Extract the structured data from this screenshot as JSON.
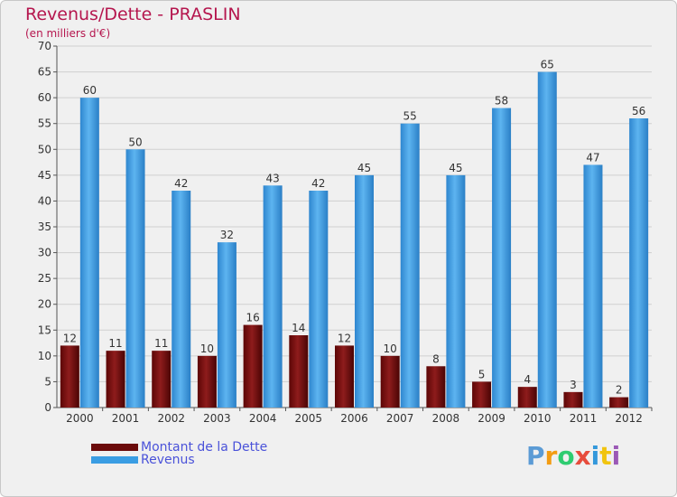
{
  "title": "Revenus/Dette - PRASLIN",
  "subtitle": "(en milliers d'€)",
  "logo": {
    "text": "Proxiti",
    "letters": [
      {
        "ch": "P",
        "color": "#5b9bd5"
      },
      {
        "ch": "r",
        "color": "#f39c12"
      },
      {
        "ch": "o",
        "color": "#2ecc71"
      },
      {
        "ch": "x",
        "color": "#e74c3c"
      },
      {
        "ch": "i",
        "color": "#3498db"
      },
      {
        "ch": "t",
        "color": "#f1c40f"
      },
      {
        "ch": "i",
        "color": "#9b59b6"
      }
    ]
  },
  "chart_data": {
    "type": "bar",
    "title": "Revenus/Dette - PRASLIN",
    "subtitle": "(en milliers d'€)",
    "categories": [
      "2000",
      "2001",
      "2002",
      "2003",
      "2004",
      "2005",
      "2006",
      "2007",
      "2008",
      "2009",
      "2010",
      "2011",
      "2012"
    ],
    "series": [
      {
        "name": "Montant de la Dette",
        "color": "#7a1010",
        "values": [
          12,
          11,
          11,
          10,
          16,
          14,
          12,
          10,
          8,
          5,
          4,
          3,
          2
        ]
      },
      {
        "name": "Revenus",
        "color": "#3a9de3",
        "values": [
          60,
          50,
          42,
          32,
          43,
          42,
          45,
          55,
          45,
          58,
          65,
          47,
          56
        ]
      }
    ],
    "ylim": [
      0,
      70
    ],
    "yticks": [
      0,
      5,
      10,
      15,
      20,
      25,
      30,
      35,
      40,
      45,
      50,
      55,
      60,
      65,
      70
    ],
    "grid": true,
    "legend_position": "bottom-left"
  }
}
